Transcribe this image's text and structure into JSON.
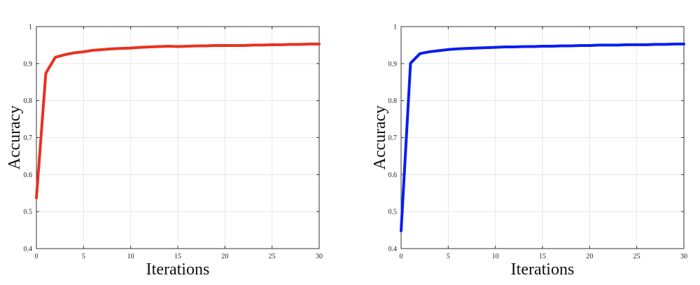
{
  "chart_data": [
    {
      "type": "line",
      "title": "",
      "xlabel": "Iterations",
      "ylabel": "Accuracy",
      "xlim": [
        0,
        30
      ],
      "ylim": [
        0.4,
        1
      ],
      "xticks": [
        0,
        5,
        10,
        15,
        20,
        25,
        30
      ],
      "yticks": [
        0.4,
        0.5,
        0.6,
        0.7,
        0.8,
        0.9,
        1
      ],
      "ytick_labels": [
        "0.4",
        "0.5",
        "0.6",
        "0.7",
        "0.8",
        "0.9",
        "1"
      ],
      "grid": true,
      "series": [
        {
          "color": "#e8321e",
          "x": [
            0,
            1,
            2,
            3,
            4,
            5,
            6,
            7,
            8,
            9,
            10,
            11,
            12,
            13,
            14,
            15,
            16,
            17,
            18,
            19,
            20,
            21,
            22,
            23,
            24,
            25,
            26,
            27,
            28,
            29,
            30
          ],
          "y": [
            0.537,
            0.874,
            0.917,
            0.924,
            0.929,
            0.932,
            0.936,
            0.938,
            0.94,
            0.941,
            0.942,
            0.944,
            0.945,
            0.946,
            0.947,
            0.946,
            0.947,
            0.948,
            0.948,
            0.949,
            0.949,
            0.949,
            0.949,
            0.95,
            0.95,
            0.951,
            0.951,
            0.952,
            0.952,
            0.953,
            0.953
          ]
        }
      ]
    },
    {
      "type": "line",
      "title": "",
      "xlabel": "Iterations",
      "ylabel": "Accuracy",
      "xlim": [
        0,
        30
      ],
      "ylim": [
        0.4,
        1
      ],
      "xticks": [
        0,
        5,
        10,
        15,
        20,
        25,
        30
      ],
      "yticks": [
        0.4,
        0.5,
        0.6,
        0.7,
        0.8,
        0.9,
        1
      ],
      "ytick_labels": [
        "0.4",
        "0.5",
        "0.6",
        "0.7",
        "0.8",
        "0.9",
        "1"
      ],
      "grid": true,
      "series": [
        {
          "color": "#0a1ef0",
          "x": [
            0,
            1,
            2,
            3,
            4,
            5,
            6,
            7,
            8,
            9,
            10,
            11,
            12,
            13,
            14,
            15,
            16,
            17,
            18,
            19,
            20,
            21,
            22,
            23,
            24,
            25,
            26,
            27,
            28,
            29,
            30
          ],
          "y": [
            0.448,
            0.901,
            0.927,
            0.932,
            0.935,
            0.938,
            0.94,
            0.941,
            0.942,
            0.943,
            0.944,
            0.945,
            0.945,
            0.946,
            0.946,
            0.947,
            0.947,
            0.948,
            0.948,
            0.949,
            0.949,
            0.95,
            0.95,
            0.95,
            0.951,
            0.951,
            0.951,
            0.952,
            0.952,
            0.953,
            0.953
          ]
        }
      ]
    }
  ]
}
